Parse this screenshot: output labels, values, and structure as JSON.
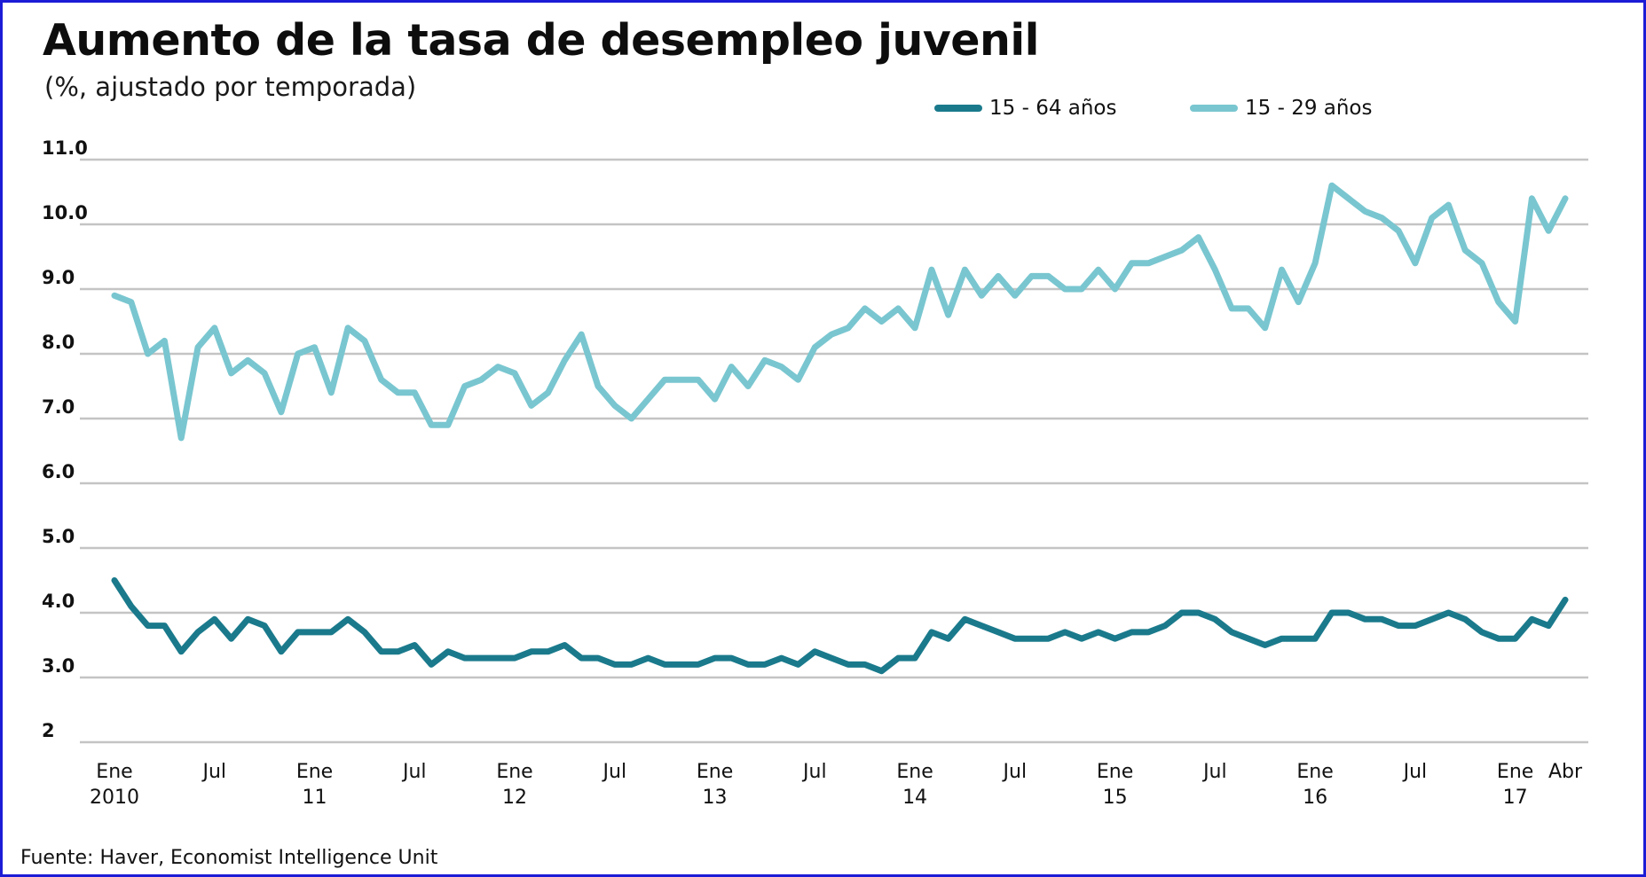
{
  "title": "Aumento de la tasa de desempleo juvenil",
  "subtitle": "(%, ajustado por temporada)",
  "source": "Fuente:  Haver, Economist Intelligence Unit",
  "legend": [
    {
      "label": "15 - 64 años",
      "color": "#1a7a8c"
    },
    {
      "label": "15 - 29 años",
      "color": "#79c6d0"
    }
  ],
  "chart_data": {
    "type": "line",
    "title": "Aumento de la tasa de desempleo juvenil",
    "subtitle": "(%, ajustado por temporada)",
    "x_start": "2010-01",
    "x_end": "2017-04",
    "ylim": [
      2.0,
      11.0
    ],
    "yticks": [
      {
        "value": 2.0,
        "label": "2"
      },
      {
        "value": 3.0,
        "label": "3.0"
      },
      {
        "value": 4.0,
        "label": "4.0"
      },
      {
        "value": 5.0,
        "label": "5.0"
      },
      {
        "value": 6.0,
        "label": "6.0"
      },
      {
        "value": 7.0,
        "label": "7.0"
      },
      {
        "value": 8.0,
        "label": "8.0"
      },
      {
        "value": 9.0,
        "label": "9.0"
      },
      {
        "value": 10.0,
        "label": "10.0"
      },
      {
        "value": 11.0,
        "label": "11.0"
      }
    ],
    "xticks": [
      {
        "index": 0,
        "line1": "Ene",
        "line2": "2010"
      },
      {
        "index": 6,
        "line1": "Jul",
        "line2": ""
      },
      {
        "index": 12,
        "line1": "Ene",
        "line2": "11"
      },
      {
        "index": 18,
        "line1": "Jul",
        "line2": ""
      },
      {
        "index": 24,
        "line1": "Ene",
        "line2": "12"
      },
      {
        "index": 30,
        "line1": "Jul",
        "line2": ""
      },
      {
        "index": 36,
        "line1": "Ene",
        "line2": "13"
      },
      {
        "index": 42,
        "line1": "Jul",
        "line2": ""
      },
      {
        "index": 48,
        "line1": "Ene",
        "line2": "14"
      },
      {
        "index": 54,
        "line1": "Jul",
        "line2": ""
      },
      {
        "index": 60,
        "line1": "Ene",
        "line2": "15"
      },
      {
        "index": 66,
        "line1": "Jul",
        "line2": ""
      },
      {
        "index": 72,
        "line1": "Ene",
        "line2": "16"
      },
      {
        "index": 78,
        "line1": "Jul",
        "line2": ""
      },
      {
        "index": 84,
        "line1": "Ene",
        "line2": "17"
      },
      {
        "index": 87,
        "line1": "Abr",
        "line2": ""
      }
    ],
    "grid": true,
    "legend_position": "top-right",
    "series": [
      {
        "name": "15 - 64 años",
        "color": "#1a7a8c",
        "values": [
          4.5,
          4.1,
          3.8,
          3.8,
          3.4,
          3.7,
          3.9,
          3.6,
          3.9,
          3.8,
          3.4,
          3.7,
          3.7,
          3.7,
          3.9,
          3.7,
          3.4,
          3.4,
          3.5,
          3.2,
          3.4,
          3.3,
          3.3,
          3.3,
          3.3,
          3.4,
          3.4,
          3.5,
          3.3,
          3.3,
          3.2,
          3.2,
          3.3,
          3.2,
          3.2,
          3.2,
          3.3,
          3.3,
          3.2,
          3.2,
          3.3,
          3.2,
          3.4,
          3.3,
          3.2,
          3.2,
          3.1,
          3.3,
          3.3,
          3.7,
          3.6,
          3.9,
          3.8,
          3.7,
          3.6,
          3.6,
          3.6,
          3.7,
          3.6,
          3.7,
          3.6,
          3.7,
          3.7,
          3.8,
          4.0,
          4.0,
          3.9,
          3.7,
          3.6,
          3.5,
          3.6,
          3.6,
          3.6,
          4.0,
          4.0,
          3.9,
          3.9,
          3.8,
          3.8,
          3.9,
          4.0,
          3.9,
          3.7,
          3.6,
          3.6,
          3.9,
          3.8,
          4.2
        ]
      },
      {
        "name": "15 - 29 años",
        "color": "#79c6d0",
        "values": [
          8.9,
          8.8,
          8.0,
          8.2,
          6.7,
          8.1,
          8.4,
          7.7,
          7.9,
          7.7,
          7.1,
          8.0,
          8.1,
          7.4,
          8.4,
          8.2,
          7.6,
          7.4,
          7.4,
          6.9,
          6.9,
          7.5,
          7.6,
          7.8,
          7.7,
          7.2,
          7.4,
          7.9,
          8.3,
          7.5,
          7.2,
          7.0,
          7.3,
          7.6,
          7.6,
          7.6,
          7.3,
          7.8,
          7.5,
          7.9,
          7.8,
          7.6,
          8.1,
          8.3,
          8.4,
          8.7,
          8.5,
          8.7,
          8.4,
          9.3,
          8.6,
          9.3,
          8.9,
          9.2,
          8.9,
          9.2,
          9.2,
          9.0,
          9.0,
          9.3,
          9.0,
          9.4,
          9.4,
          9.5,
          9.6,
          9.8,
          9.3,
          8.7,
          8.7,
          8.4,
          9.3,
          8.8,
          9.4,
          10.6,
          10.4,
          10.2,
          10.1,
          9.9,
          9.4,
          10.1,
          10.3,
          9.6,
          9.4,
          8.8,
          8.5,
          10.4,
          9.9,
          10.4
        ]
      }
    ]
  }
}
